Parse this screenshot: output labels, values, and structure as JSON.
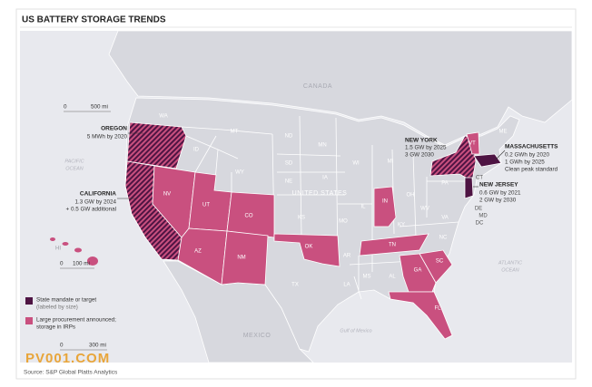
{
  "header": {
    "title": "US BATTERY STORAGE TRENDS"
  },
  "map": {
    "geo_labels": [
      "CANADA",
      "PACIFIC",
      "OCEAN",
      "UNITED STATES",
      "MEXICO",
      "Gulf of Mexico",
      "ATLANTIC",
      "OCEAN",
      "HI"
    ],
    "state_labels": [
      "WA",
      "MT",
      "ND",
      "MN",
      "WI",
      "MI",
      "ID",
      "WY",
      "SD",
      "NE",
      "IA",
      "IL",
      "IN",
      "OH",
      "PA",
      "NV",
      "UT",
      "CO",
      "KS",
      "MO",
      "KY",
      "WV",
      "VA",
      "NC",
      "TN",
      "SC",
      "GA",
      "AL",
      "MS",
      "AR",
      "LA",
      "OK",
      "TX",
      "AZ",
      "NM",
      "FL",
      "VT",
      "ME",
      "CT",
      "DE",
      "MD",
      "DC"
    ]
  },
  "annotations": [
    {
      "title": "OREGON",
      "lines": [
        "5 MWh by 2020"
      ]
    },
    {
      "title": "CALIFORNIA",
      "lines": [
        "1.3 GW by 2024",
        "+ 0.5 GW additional"
      ]
    },
    {
      "title": "NEW YORK",
      "lines": [
        "1.5 GW by 2025",
        "3 GW 2030"
      ]
    },
    {
      "title": "MASSACHUSETTS",
      "lines": [
        "0.2 GWh by 2020",
        "1 GWh by 2025",
        "Clean peak standard"
      ]
    },
    {
      "title": "NEW JERSEY",
      "lines": [
        "0.6 GW by 2021",
        "2 GW by 2030"
      ]
    }
  ],
  "scales": [
    [
      "0",
      "500 mi"
    ],
    [
      "0",
      "100 mi"
    ],
    [
      "0",
      "300 mi"
    ]
  ],
  "legend": [
    {
      "lines": [
        "State mandate or target",
        "(labeled by size)"
      ]
    },
    {
      "lines": [
        "Large procurement announced;",
        "storage in IRPs"
      ]
    }
  ],
  "watermark": "PV001.COM",
  "source": "Source: S&P Global Platts Analytics"
}
